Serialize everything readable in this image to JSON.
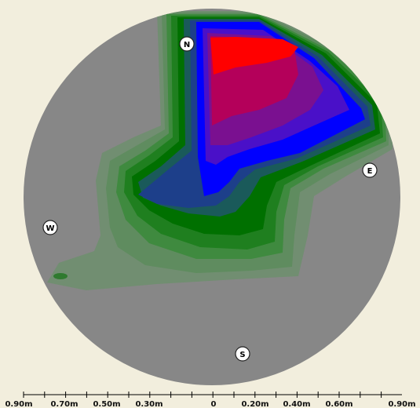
{
  "compass": {
    "north": "N",
    "east": "E",
    "south": "S",
    "west": "W"
  },
  "scale": {
    "labels": [
      "0.90m",
      "0.70m",
      "0.50m",
      "0.30m",
      "0",
      "0.20m",
      "0.40m",
      "0.60m",
      "0.90m"
    ]
  },
  "colors": {
    "background": "#f2eedd",
    "disk": "#878787",
    "high": "#ff0000",
    "mid_high": "#c80040",
    "mid": "#0000ff",
    "low": "#007a00",
    "lowest": "#4e8a4e"
  }
}
